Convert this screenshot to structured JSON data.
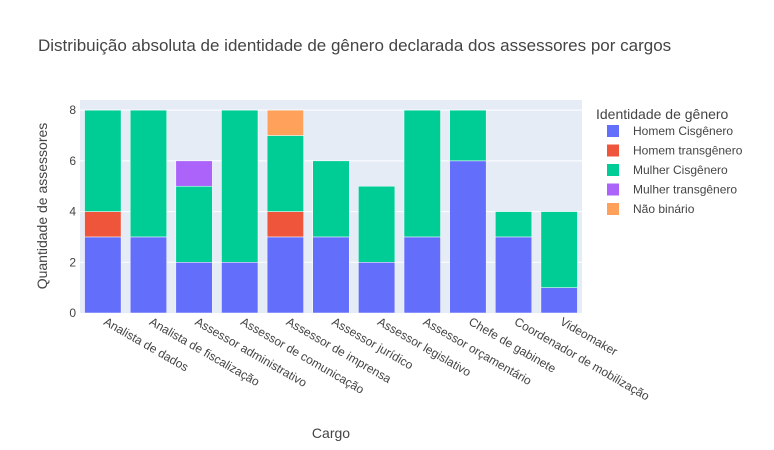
{
  "chart_data": {
    "type": "bar",
    "barmode": "stack",
    "title": "Distribuição absoluta de identidade de gênero declarada dos assessores por cargos",
    "xlabel": "Cargo",
    "ylabel": "Quantidade de assessores",
    "ylim": [
      0,
      8.4
    ],
    "yticks": [
      0,
      2,
      4,
      6,
      8
    ],
    "grid": true,
    "legend_title": "Identidade de gênero",
    "legend_position": "right",
    "categories": [
      "Analista de dados",
      "Analista de fiscalização",
      "Assessor administrativo",
      "Assessor de comunicação",
      "Assessor de imprensa",
      "Assessor jurídico",
      "Assessor legislativo",
      "Assessor orçamentário",
      "Chefe de gabinete",
      "Coordenador de mobilização",
      "Videomaker"
    ],
    "series": [
      {
        "name": "Homem Cisgênero",
        "color": "#636efa",
        "values": [
          3,
          3,
          2,
          2,
          3,
          3,
          2,
          3,
          6,
          3,
          1
        ]
      },
      {
        "name": "Homem transgênero",
        "color": "#ef553b",
        "values": [
          1,
          0,
          0,
          0,
          1,
          0,
          0,
          0,
          0,
          0,
          0
        ]
      },
      {
        "name": "Mulher Cisgênero",
        "color": "#00cc96",
        "values": [
          4,
          5,
          3,
          6,
          3,
          3,
          3,
          5,
          2,
          1,
          3
        ]
      },
      {
        "name": "Mulher transgênero",
        "color": "#ab63fa",
        "values": [
          0,
          0,
          1,
          0,
          0,
          0,
          0,
          0,
          0,
          0,
          0
        ]
      },
      {
        "name": "Não binário",
        "color": "#ffa15a",
        "values": [
          0,
          0,
          0,
          0,
          1,
          0,
          0,
          0,
          0,
          0,
          0
        ]
      }
    ]
  }
}
